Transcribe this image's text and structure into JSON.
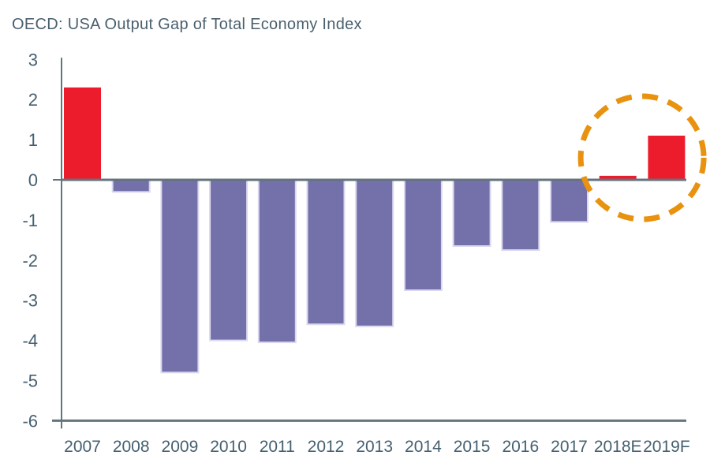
{
  "header": {
    "title": "OECD: USA Output Gap of Total Economy Index"
  },
  "colors": {
    "background": "#FFFFFF",
    "bar_default": "#7470AA",
    "bar_highlight": "#EC1C2D",
    "bar_border": "#DAD8EE",
    "axis": "#64747D",
    "label_text": "#456070",
    "title_text": "#4A5F6E",
    "annotation_circle": "#E8920F"
  },
  "chart_data": {
    "type": "bar",
    "title": "OECD: USA Output Gap of Total Economy Index",
    "categories": [
      "2007",
      "2008",
      "2009",
      "2010",
      "2011",
      "2012",
      "2013",
      "2014",
      "2015",
      "2016",
      "2017",
      "2018E",
      "2019F"
    ],
    "values": [
      2.3,
      -0.3,
      -4.8,
      -4.0,
      -4.05,
      -3.6,
      -3.65,
      -2.75,
      -1.65,
      -1.75,
      -1.05,
      0.1,
      1.1
    ],
    "highlighted_categories": [
      "2007",
      "2018E",
      "2019F"
    ],
    "xlabel": "",
    "ylabel": "",
    "ylim": [
      -6,
      3
    ],
    "ytick_step": 1,
    "yticks": [
      3,
      2,
      1,
      0,
      -1,
      -2,
      -3,
      -4,
      -5,
      -6
    ],
    "grid": false,
    "legend": "none",
    "annotation": {
      "shape": "dashed-circle",
      "around": [
        "2018E",
        "2019F"
      ],
      "meaning": "highlight of estimate and forecast bars"
    }
  }
}
